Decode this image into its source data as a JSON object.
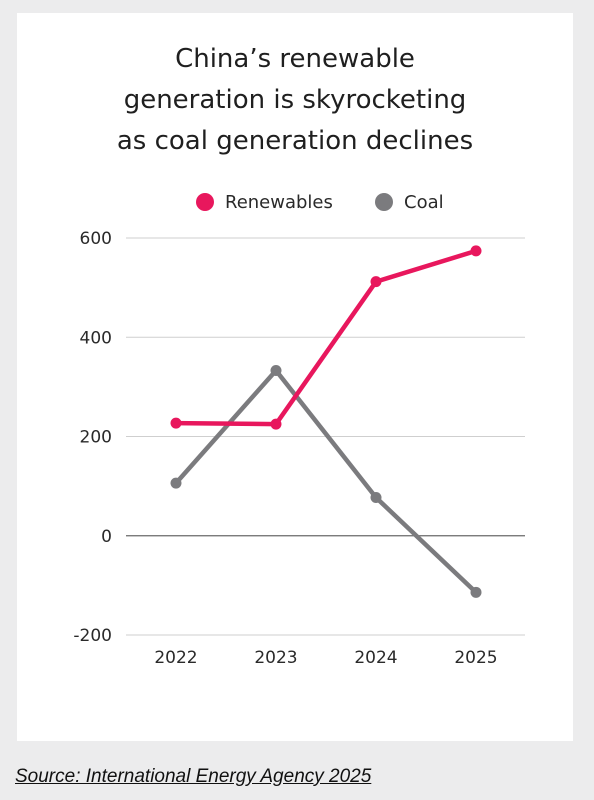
{
  "chart_data": {
    "type": "line",
    "title_lines": [
      "China’s renewable",
      "generation is skyrocketing",
      "as coal generation declines"
    ],
    "categories": [
      "2022",
      "2023",
      "2024",
      "2025"
    ],
    "series": [
      {
        "name": "Renewables",
        "color": "#e8175d",
        "values": [
          227,
          225,
          512,
          574
        ]
      },
      {
        "name": "Coal",
        "color": "#7b7b7e",
        "values": [
          106,
          333,
          77,
          -114
        ]
      }
    ],
    "ylim": [
      -200,
      600
    ],
    "yticks": [
      600,
      400,
      200,
      0,
      -200
    ],
    "grid": true,
    "legend_position": "top-center"
  },
  "source": "Source: International Energy Agency 2025"
}
